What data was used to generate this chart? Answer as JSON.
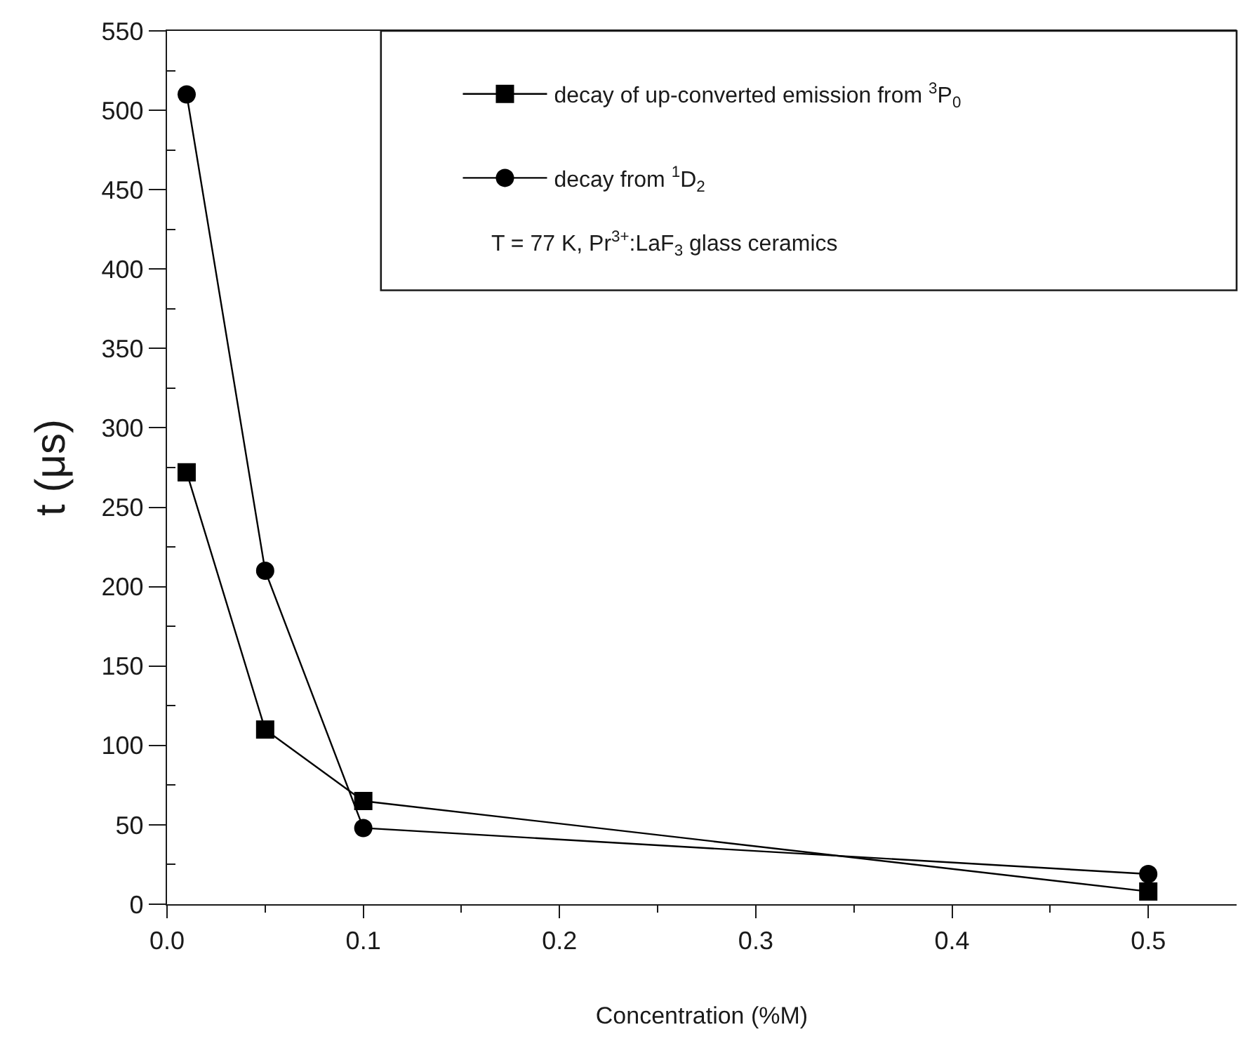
{
  "chart_data": {
    "type": "line",
    "xlabel": "Concentration (%M)",
    "ylabel": "t (μs)",
    "x": [
      0.01,
      0.05,
      0.1,
      0.5
    ],
    "series": [
      {
        "name": "decay of up-converted emission from $^{3}$P$_{0}$",
        "color": "#000000",
        "marker": "square",
        "values": [
          272,
          110,
          65,
          8
        ]
      },
      {
        "name": "decay from $^{1}$D$_{2}$",
        "color": "#000000",
        "marker": "circle",
        "values": [
          510,
          210,
          48,
          19
        ]
      }
    ],
    "annotations": [
      "T = 77 K, Pr$^{3+}$:LaF$_{3}$ glass ceramics"
    ],
    "xlim": [
      0,
      0.545
    ],
    "xticks": [
      {
        "value": 0,
        "label": "0.0"
      },
      0.1,
      0.2,
      0.3,
      0.4,
      0.5
    ],
    "ylim": [
      0,
      550
    ],
    "yticks": [
      0,
      50,
      100,
      150,
      200,
      250,
      300,
      350,
      400,
      450,
      500,
      550
    ],
    "grid": false,
    "legend": "top right",
    "line_style": "solid"
  }
}
